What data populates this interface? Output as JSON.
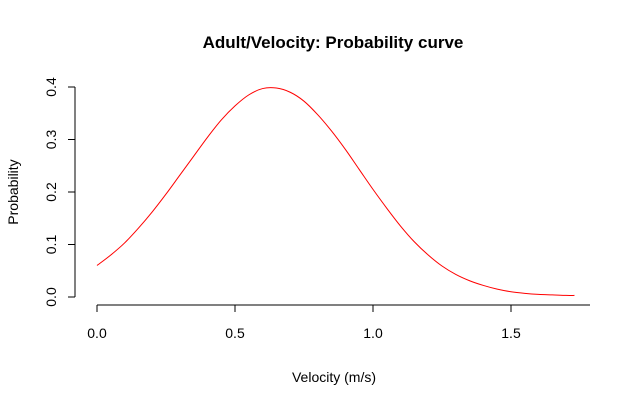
{
  "chart_data": {
    "type": "line",
    "title": "Adult/Velocity: Probability curve",
    "xlabel": "Velocity (m/s)",
    "ylabel": "Probability",
    "xlim": [
      0,
      1.8
    ],
    "ylim": [
      0,
      0.4
    ],
    "x_ticks": [
      "0.0",
      "0.5",
      "1.0",
      "1.5"
    ],
    "y_ticks": [
      "0.0",
      "0.1",
      "0.2",
      "0.3",
      "0.4"
    ],
    "grid": false,
    "legend": "none",
    "series": [
      {
        "color": "#ff0000",
        "x": [
          0.0,
          0.05,
          0.1,
          0.15,
          0.2,
          0.25,
          0.3,
          0.35,
          0.4,
          0.45,
          0.5,
          0.55,
          0.6,
          0.65,
          0.7,
          0.75,
          0.8,
          0.85,
          0.9,
          0.95,
          1.0,
          1.05,
          1.1,
          1.15,
          1.2,
          1.25,
          1.3,
          1.35,
          1.4,
          1.45,
          1.5,
          1.55,
          1.6,
          1.65,
          1.7,
          1.73
        ],
        "values": [
          0.06,
          0.08,
          0.103,
          0.131,
          0.162,
          0.196,
          0.232,
          0.268,
          0.304,
          0.337,
          0.364,
          0.385,
          0.397,
          0.398,
          0.39,
          0.373,
          0.347,
          0.316,
          0.281,
          0.243,
          0.205,
          0.169,
          0.135,
          0.105,
          0.08,
          0.059,
          0.043,
          0.031,
          0.022,
          0.015,
          0.01,
          0.007,
          0.005,
          0.004,
          0.003,
          0.003
        ]
      }
    ]
  }
}
